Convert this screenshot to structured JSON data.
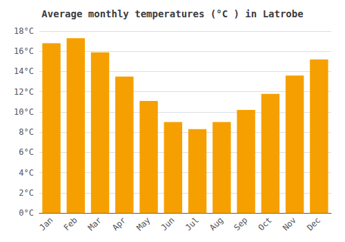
{
  "chart_data": {
    "type": "bar",
    "title": "Average monthly temperatures (°C ) in Latrobe",
    "categories": [
      "Jan",
      "Feb",
      "Mar",
      "Apr",
      "May",
      "Jun",
      "Jul",
      "Aug",
      "Sep",
      "Oct",
      "Nov",
      "Dec"
    ],
    "values": [
      16.8,
      17.3,
      15.9,
      13.5,
      11.1,
      9.0,
      8.3,
      9.0,
      10.2,
      11.8,
      13.6,
      15.2
    ],
    "color": "#F5A000",
    "ylim": [
      0,
      18
    ],
    "yticks": [
      {
        "value": 0,
        "label": "0°C"
      },
      {
        "value": 2,
        "label": "2°C"
      },
      {
        "value": 4,
        "label": "4°C"
      },
      {
        "value": 6,
        "label": "6°C"
      },
      {
        "value": 8,
        "label": "8°C"
      },
      {
        "value": 10,
        "label": "10°C"
      },
      {
        "value": 12,
        "label": "12°C"
      },
      {
        "value": 14,
        "label": "14°C"
      },
      {
        "value": 16,
        "label": "16°C"
      },
      {
        "value": 18,
        "label": "18°C"
      }
    ],
    "grid": true
  }
}
